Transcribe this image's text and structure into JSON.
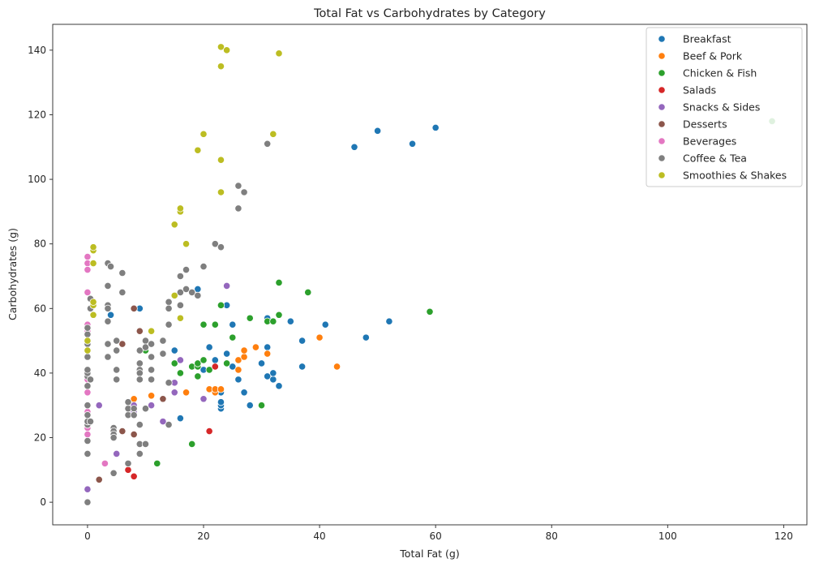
{
  "chart_data": {
    "type": "scatter",
    "title": "Total Fat vs Carbohydrates by Category",
    "xlabel": "Total Fat (g)",
    "ylabel": "Carbohydrates (g)",
    "xlim": [
      -6,
      124
    ],
    "ylim": [
      -7,
      148
    ],
    "xticks": [
      0,
      20,
      40,
      60,
      80,
      100,
      120
    ],
    "yticks": [
      0,
      20,
      40,
      60,
      80,
      100,
      120,
      140
    ],
    "grid": false,
    "legend_position": "top-right",
    "series": [
      {
        "name": "Breakfast",
        "color": "#1f77b4",
        "points": [
          [
            4,
            58
          ],
          [
            9,
            60
          ],
          [
            15,
            47
          ],
          [
            16,
            26
          ],
          [
            19,
            66
          ],
          [
            20,
            41
          ],
          [
            21,
            48
          ],
          [
            22,
            44
          ],
          [
            23,
            29
          ],
          [
            23,
            30
          ],
          [
            23,
            31
          ],
          [
            23,
            34
          ],
          [
            24,
            61
          ],
          [
            24,
            46
          ],
          [
            25,
            55
          ],
          [
            25,
            42
          ],
          [
            26,
            38
          ],
          [
            27,
            34
          ],
          [
            28,
            30
          ],
          [
            30,
            43
          ],
          [
            31,
            57
          ],
          [
            31,
            48
          ],
          [
            31,
            39
          ],
          [
            32,
            38
          ],
          [
            32,
            40
          ],
          [
            33,
            36
          ],
          [
            35,
            56
          ],
          [
            37,
            50
          ],
          [
            37,
            42
          ],
          [
            41,
            55
          ],
          [
            46,
            110
          ],
          [
            48,
            51
          ],
          [
            50,
            115
          ],
          [
            52,
            56
          ],
          [
            56,
            111
          ],
          [
            60,
            116
          ]
        ]
      },
      {
        "name": "Beef & Pork",
        "color": "#ff7f0e",
        "points": [
          [
            8,
            32
          ],
          [
            11,
            33
          ],
          [
            17,
            34
          ],
          [
            21,
            35
          ],
          [
            22,
            34
          ],
          [
            22,
            35
          ],
          [
            23,
            35
          ],
          [
            26,
            41
          ],
          [
            26,
            44
          ],
          [
            27,
            45
          ],
          [
            27,
            47
          ],
          [
            29,
            48
          ],
          [
            31,
            46
          ],
          [
            40,
            51
          ],
          [
            43,
            42
          ]
        ]
      },
      {
        "name": "Chicken & Fish",
        "color": "#2ca02c",
        "points": [
          [
            10,
            47
          ],
          [
            12,
            12
          ],
          [
            15,
            43
          ],
          [
            16,
            40
          ],
          [
            18,
            18
          ],
          [
            18,
            42
          ],
          [
            19,
            39
          ],
          [
            19,
            42
          ],
          [
            19,
            43
          ],
          [
            20,
            44
          ],
          [
            20,
            55
          ],
          [
            21,
            41
          ],
          [
            22,
            55
          ],
          [
            23,
            61
          ],
          [
            24,
            43
          ],
          [
            25,
            51
          ],
          [
            28,
            57
          ],
          [
            30,
            30
          ],
          [
            31,
            56
          ],
          [
            32,
            56
          ],
          [
            33,
            58
          ],
          [
            33,
            68
          ],
          [
            38,
            65
          ],
          [
            59,
            59
          ],
          [
            118,
            118
          ]
        ]
      },
      {
        "name": "Salads",
        "color": "#d62728",
        "points": [
          [
            7,
            10
          ],
          [
            8,
            8
          ],
          [
            21,
            22
          ],
          [
            22,
            42
          ]
        ]
      },
      {
        "name": "Snacks & Sides",
        "color": "#9467bd",
        "points": [
          [
            0,
            4
          ],
          [
            2,
            30
          ],
          [
            5,
            15
          ],
          [
            8,
            28
          ],
          [
            8,
            30
          ],
          [
            11,
            30
          ],
          [
            13,
            25
          ],
          [
            15,
            37
          ],
          [
            15,
            34
          ],
          [
            16,
            44
          ],
          [
            20,
            32
          ],
          [
            24,
            67
          ]
        ]
      },
      {
        "name": "Desserts",
        "color": "#8c564b",
        "points": [
          [
            2,
            7
          ],
          [
            6,
            22
          ],
          [
            6,
            49
          ],
          [
            8,
            21
          ],
          [
            8,
            60
          ],
          [
            9,
            53
          ],
          [
            13,
            32
          ]
        ]
      },
      {
        "name": "Beverages",
        "color": "#e377c2",
        "points": [
          [
            0,
            76
          ],
          [
            0,
            74
          ],
          [
            0,
            72
          ],
          [
            0,
            65
          ],
          [
            0,
            55
          ],
          [
            0,
            53
          ],
          [
            0,
            50
          ],
          [
            0,
            45
          ],
          [
            0,
            38
          ],
          [
            0,
            34
          ],
          [
            0,
            28
          ],
          [
            0,
            23
          ],
          [
            0,
            21
          ],
          [
            3,
            12
          ]
        ]
      },
      {
        "name": "Coffee & Tea",
        "color": "#7f7f7f",
        "points": [
          [
            0,
            0
          ],
          [
            0,
            15
          ],
          [
            0,
            19
          ],
          [
            0,
            24
          ],
          [
            0,
            25
          ],
          [
            0,
            27
          ],
          [
            0,
            30
          ],
          [
            0,
            36
          ],
          [
            0,
            39
          ],
          [
            0,
            40
          ],
          [
            0,
            41
          ],
          [
            0,
            45
          ],
          [
            0,
            49
          ],
          [
            0,
            52
          ],
          [
            0,
            54
          ],
          [
            0.5,
            60
          ],
          [
            0.5,
            63
          ],
          [
            0.5,
            38
          ],
          [
            0.5,
            25
          ],
          [
            3.5,
            74
          ],
          [
            4,
            73
          ],
          [
            3.5,
            67
          ],
          [
            3.5,
            61
          ],
          [
            3.5,
            60
          ],
          [
            3.5,
            56
          ],
          [
            3.5,
            49
          ],
          [
            3.5,
            45
          ],
          [
            4.5,
            23
          ],
          [
            4.5,
            22
          ],
          [
            4.5,
            21
          ],
          [
            4.5,
            20
          ],
          [
            4.5,
            9
          ],
          [
            5,
            50
          ],
          [
            5,
            47
          ],
          [
            5,
            41
          ],
          [
            5,
            38
          ],
          [
            6,
            71
          ],
          [
            6,
            65
          ],
          [
            7,
            12
          ],
          [
            7,
            27
          ],
          [
            7,
            29
          ],
          [
            7,
            31
          ],
          [
            8,
            29
          ],
          [
            8,
            27
          ],
          [
            9,
            47
          ],
          [
            9,
            43
          ],
          [
            9,
            41
          ],
          [
            9,
            40
          ],
          [
            9,
            38
          ],
          [
            9,
            24
          ],
          [
            9,
            18
          ],
          [
            9,
            15
          ],
          [
            10,
            50
          ],
          [
            10,
            48
          ],
          [
            10,
            29
          ],
          [
            10,
            18
          ],
          [
            11,
            49
          ],
          [
            11,
            45
          ],
          [
            11,
            41
          ],
          [
            11,
            38
          ],
          [
            13,
            46
          ],
          [
            13,
            50
          ],
          [
            14,
            62
          ],
          [
            14,
            60
          ],
          [
            14,
            55
          ],
          [
            14,
            37
          ],
          [
            14,
            24
          ],
          [
            15,
            64
          ],
          [
            16,
            70
          ],
          [
            16,
            65
          ],
          [
            16,
            61
          ],
          [
            17,
            72
          ],
          [
            17,
            66
          ],
          [
            18,
            65
          ],
          [
            19,
            64
          ],
          [
            20,
            73
          ],
          [
            22,
            80
          ],
          [
            23,
            79
          ],
          [
            26,
            98
          ],
          [
            26,
            91
          ],
          [
            27,
            96
          ],
          [
            31,
            111
          ]
        ]
      },
      {
        "name": "Smoothies & Shakes",
        "color": "#bcbd22",
        "points": [
          [
            0,
            47
          ],
          [
            0,
            50
          ],
          [
            1,
            58
          ],
          [
            1,
            61
          ],
          [
            1,
            62
          ],
          [
            1,
            74
          ],
          [
            1,
            78
          ],
          [
            1,
            79
          ],
          [
            11,
            53
          ],
          [
            15,
            64
          ],
          [
            15,
            86
          ],
          [
            16,
            57
          ],
          [
            16,
            90
          ],
          [
            16,
            91
          ],
          [
            17,
            80
          ],
          [
            19,
            109
          ],
          [
            20,
            114
          ],
          [
            23,
            96
          ],
          [
            23,
            106
          ],
          [
            23,
            135
          ],
          [
            23,
            141
          ],
          [
            24,
            140
          ],
          [
            32,
            114
          ],
          [
            33,
            139
          ]
        ]
      }
    ]
  }
}
